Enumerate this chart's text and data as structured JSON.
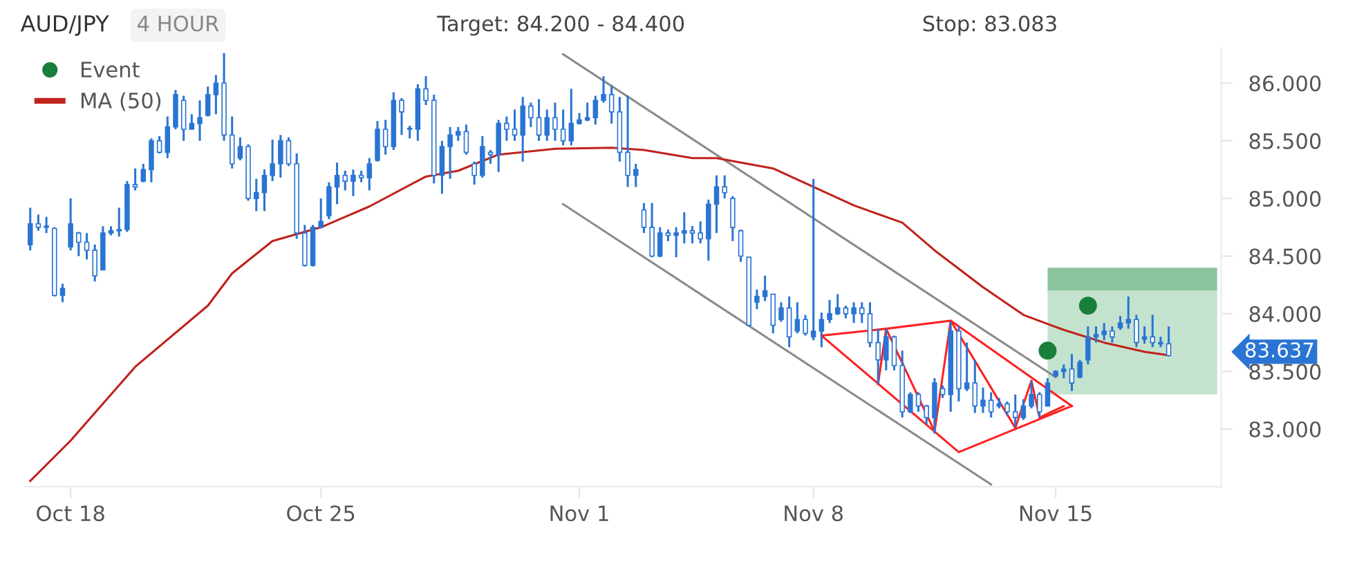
{
  "chart_data": {
    "type": "candlestick",
    "title": "AUD/JPY",
    "subtitle": "4 HOUR",
    "categories": [
      null,
      null,
      null,
      null,
      null,
      "Oct 18",
      null,
      null,
      null,
      null,
      null,
      null,
      null,
      null,
      null,
      null,
      null,
      null,
      null,
      null,
      null,
      null,
      null,
      null,
      null,
      null,
      null,
      null,
      null,
      null,
      null,
      null,
      null,
      null,
      null,
      null,
      "Oct 25",
      null,
      null,
      null,
      null,
      null,
      null,
      null,
      null,
      null,
      null,
      null,
      null,
      null,
      null,
      null,
      null,
      null,
      null,
      null,
      null,
      null,
      null,
      null,
      null,
      null,
      null,
      null,
      null,
      null,
      null,
      null,
      "Nov 1",
      null,
      null,
      null,
      null,
      null,
      null,
      null,
      null,
      null,
      null,
      null,
      null,
      null,
      null,
      null,
      null,
      null,
      null,
      null,
      null,
      null,
      null,
      null,
      null,
      null,
      null,
      null,
      null,
      "Nov 8",
      null,
      null,
      null,
      null,
      null,
      null,
      null,
      null,
      null,
      null,
      null,
      null,
      null,
      null,
      null,
      null,
      null,
      null,
      null,
      null,
      null,
      null,
      null,
      null,
      null,
      null,
      null,
      null,
      null,
      "Nov 15",
      null,
      null,
      null,
      null,
      null,
      null,
      null,
      null,
      null,
      null,
      null,
      null,
      null,
      null,
      null,
      null,
      null,
      null,
      null,
      null
    ],
    "ylim": [
      82.5,
      86.3
    ],
    "yticks": [
      {
        "value": 83,
        "label": "83.000"
      },
      {
        "value": 83.5,
        "label": "83.500"
      },
      {
        "value": 84,
        "label": "84.000"
      },
      {
        "value": 84.5,
        "label": "84.500"
      },
      {
        "value": 85,
        "label": "85.000"
      },
      {
        "value": 85.5,
        "label": "85.500"
      },
      {
        "value": 86,
        "label": "86.000"
      }
    ],
    "grid": false,
    "legend": "top left",
    "bands": [
      {
        "axis": "y",
        "from": 83.3,
        "to": 84.2,
        "color": "#c3e3cf"
      },
      {
        "axis": "y",
        "from": 84.2,
        "to": 84.4,
        "color": "#8cc49d"
      }
    ],
    "annotations": [
      "Target: 84.200 - 84.400",
      "Stop: 83.083",
      "83.637"
    ],
    "series": [
      {
        "type": "line",
        "color": "#8a8a8a",
        "values": [
          null,
          null,
          null,
          null,
          null,
          null,
          null,
          null,
          null,
          null,
          null,
          null,
          null,
          null,
          null,
          null,
          null,
          null,
          null,
          null,
          null,
          null,
          null,
          null,
          null,
          null,
          null,
          null,
          null,
          null,
          null,
          null,
          null,
          null,
          null,
          null,
          null,
          null,
          null,
          null,
          null,
          null,
          null,
          null,
          null,
          null,
          null,
          null,
          null,
          null,
          null,
          null,
          null,
          null,
          null,
          null,
          null,
          null,
          null,
          null,
          null,
          null,
          null,
          null,
          null,
          null,
          86.25,
          null,
          null,
          null,
          null,
          null,
          null,
          null,
          null,
          null,
          null,
          null,
          null,
          null,
          null,
          null,
          null,
          null,
          null,
          null,
          null,
          null,
          null,
          null,
          null,
          null,
          null,
          null,
          null,
          null,
          null,
          null,
          null,
          null,
          null,
          null,
          null,
          null,
          null,
          null,
          null,
          null,
          null,
          null,
          null,
          null,
          null,
          null,
          null,
          null,
          null,
          null,
          null,
          null,
          null,
          null,
          null,
          null,
          null,
          null,
          null,
          83.45,
          null,
          null,
          null,
          null,
          null,
          null,
          null,
          null,
          null,
          null,
          null,
          null,
          null,
          null,
          null,
          null,
          null,
          null,
          null,
          null
        ]
      },
      {
        "type": "line",
        "color": "#8a8a8a",
        "values": [
          null,
          null,
          null,
          null,
          null,
          null,
          null,
          null,
          null,
          null,
          null,
          null,
          null,
          null,
          null,
          null,
          null,
          null,
          null,
          null,
          null,
          null,
          null,
          null,
          null,
          null,
          null,
          null,
          null,
          null,
          null,
          null,
          null,
          null,
          null,
          null,
          null,
          null,
          null,
          null,
          null,
          null,
          null,
          null,
          null,
          null,
          null,
          null,
          null,
          null,
          null,
          null,
          null,
          null,
          null,
          null,
          null,
          null,
          null,
          null,
          null,
          null,
          null,
          null,
          null,
          null,
          84.95,
          null,
          null,
          null,
          null,
          null,
          null,
          null,
          null,
          null,
          null,
          null,
          null,
          null,
          null,
          null,
          null,
          null,
          null,
          null,
          null,
          null,
          null,
          null,
          null,
          null,
          null,
          null,
          null,
          null,
          null,
          null,
          null,
          null,
          null,
          null,
          null,
          null,
          null,
          null,
          null,
          null,
          null,
          null,
          null,
          null,
          null,
          null,
          null,
          null,
          null,
          null,
          null,
          82.52,
          null,
          null,
          null,
          null,
          null,
          null,
          null,
          null,
          null,
          null,
          null,
          null,
          null,
          null,
          null,
          null,
          null,
          null,
          null,
          null,
          null,
          null,
          null,
          null,
          null,
          null,
          null,
          null
        ]
      },
      {
        "type": "line",
        "name": "MA (50)",
        "color": "#c0221b",
        "values": [
          82.55,
          null,
          null,
          null,
          null,
          82.9,
          null,
          null,
          null,
          null,
          null,
          null,
          null,
          83.54,
          null,
          null,
          null,
          null,
          null,
          null,
          null,
          null,
          84.07,
          null,
          null,
          84.35,
          null,
          null,
          null,
          null,
          84.63,
          null,
          null,
          null,
          null,
          null,
          84.75,
          null,
          null,
          null,
          null,
          null,
          84.93,
          null,
          null,
          null,
          null,
          null,
          null,
          85.19,
          null,
          null,
          null,
          85.24,
          null,
          null,
          null,
          null,
          85.38,
          null,
          null,
          null,
          null,
          null,
          null,
          85.43,
          null,
          null,
          null,
          null,
          null,
          null,
          85.44,
          null,
          null,
          null,
          85.42,
          null,
          null,
          null,
          null,
          null,
          85.35,
          null,
          null,
          85.35,
          null,
          null,
          null,
          null,
          null,
          null,
          85.26,
          null,
          null,
          null,
          null,
          85.1,
          null,
          null,
          null,
          null,
          84.94,
          null,
          null,
          null,
          null,
          null,
          84.79,
          null,
          null,
          null,
          84.55,
          null,
          null,
          null,
          null,
          null,
          84.23,
          null,
          null,
          null,
          null,
          83.99,
          null,
          null,
          null,
          null,
          83.86,
          null,
          null,
          null,
          null,
          83.75,
          null,
          null,
          null,
          null,
          83.67,
          null,
          null,
          83.64,
          null,
          null,
          null,
          null,
          null,
          null
        ]
      },
      {
        "color": "#2a75d3",
        "ohlc": [
          [
            84.6,
            84.92,
            84.55,
            84.78
          ],
          [
            84.78,
            84.86,
            84.72,
            84.75
          ],
          [
            84.75,
            84.84,
            84.7,
            84.76
          ],
          [
            84.74,
            84.75,
            84.15,
            84.16
          ],
          [
            84.16,
            84.26,
            84.1,
            84.22
          ],
          [
            84.58,
            85.0,
            84.55,
            84.78
          ],
          [
            84.7,
            84.71,
            84.5,
            84.62
          ],
          [
            84.62,
            84.7,
            84.47,
            84.55
          ],
          [
            84.55,
            84.6,
            84.28,
            84.33
          ],
          [
            84.38,
            84.76,
            84.38,
            84.7
          ],
          [
            84.7,
            84.76,
            84.68,
            84.72
          ],
          [
            84.72,
            84.92,
            84.67,
            84.73
          ],
          [
            84.73,
            85.15,
            84.71,
            85.12
          ],
          [
            85.12,
            85.26,
            85.07,
            85.1
          ],
          [
            85.15,
            85.3,
            85.14,
            85.25
          ],
          [
            85.25,
            85.52,
            85.14,
            85.5
          ],
          [
            85.5,
            85.54,
            85.39,
            85.4
          ],
          [
            85.4,
            85.71,
            85.35,
            85.62
          ],
          [
            85.62,
            85.94,
            85.6,
            85.9
          ],
          [
            85.85,
            85.89,
            85.5,
            85.6
          ],
          [
            85.6,
            85.73,
            85.6,
            85.65
          ],
          [
            85.65,
            85.85,
            85.5,
            85.7
          ],
          [
            85.72,
            85.97,
            85.71,
            85.9
          ],
          [
            85.9,
            86.07,
            85.73,
            86.0
          ],
          [
            86.0,
            86.26,
            85.5,
            85.55
          ],
          [
            85.55,
            85.71,
            85.26,
            85.3
          ],
          [
            85.35,
            85.53,
            85.33,
            85.45
          ],
          [
            85.45,
            85.47,
            84.98,
            85.0
          ],
          [
            85.0,
            85.17,
            84.89,
            85.05
          ],
          [
            85.05,
            85.25,
            84.89,
            85.2
          ],
          [
            85.2,
            85.51,
            85.15,
            85.3
          ],
          [
            85.3,
            85.55,
            85.18,
            85.5
          ],
          [
            85.5,
            85.53,
            85.28,
            85.3
          ],
          [
            85.3,
            85.39,
            84.65,
            84.7
          ],
          [
            84.7,
            84.77,
            84.41,
            84.42
          ],
          [
            84.42,
            84.77,
            84.41,
            84.75
          ],
          [
            84.75,
            85.0,
            84.74,
            84.8
          ],
          [
            84.85,
            85.14,
            84.82,
            85.1
          ],
          [
            85.1,
            85.31,
            84.95,
            85.2
          ],
          [
            85.2,
            85.24,
            85.07,
            85.15
          ],
          [
            85.15,
            85.25,
            85.02,
            85.2
          ],
          [
            85.2,
            85.24,
            85.14,
            85.18
          ],
          [
            85.18,
            85.35,
            85.07,
            85.3
          ],
          [
            85.33,
            85.67,
            85.32,
            85.6
          ],
          [
            85.6,
            85.68,
            85.38,
            85.45
          ],
          [
            85.45,
            85.92,
            85.42,
            85.85
          ],
          [
            85.85,
            85.87,
            85.55,
            85.75
          ],
          [
            85.6,
            85.63,
            85.52,
            85.6
          ],
          [
            85.6,
            85.99,
            85.5,
            85.95
          ],
          [
            85.95,
            86.06,
            85.81,
            85.85
          ],
          [
            85.85,
            85.9,
            85.13,
            85.2
          ],
          [
            85.2,
            85.5,
            85.04,
            85.45
          ],
          [
            85.45,
            85.62,
            85.17,
            85.55
          ],
          [
            85.55,
            85.62,
            85.5,
            85.58
          ],
          [
            85.58,
            85.64,
            85.38,
            85.4
          ],
          [
            85.3,
            85.32,
            85.12,
            85.2
          ],
          [
            85.2,
            85.54,
            85.18,
            85.45
          ],
          [
            85.4,
            85.42,
            85.3,
            85.38
          ],
          [
            85.38,
            85.68,
            85.23,
            85.65
          ],
          [
            85.65,
            85.71,
            85.5,
            85.6
          ],
          [
            85.6,
            85.77,
            85.5,
            85.55
          ],
          [
            85.55,
            85.88,
            85.32,
            85.8
          ],
          [
            85.8,
            85.83,
            85.62,
            85.7
          ],
          [
            85.7,
            85.86,
            85.5,
            85.55
          ],
          [
            85.55,
            85.77,
            85.5,
            85.7
          ],
          [
            85.7,
            85.83,
            85.5,
            85.6
          ],
          [
            85.6,
            85.77,
            85.46,
            85.5
          ],
          [
            85.5,
            85.95,
            85.46,
            85.65
          ],
          [
            85.65,
            85.74,
            85.64,
            85.68
          ],
          [
            85.68,
            85.83,
            85.67,
            85.7
          ],
          [
            85.7,
            85.89,
            85.64,
            85.85
          ],
          [
            85.85,
            86.06,
            85.83,
            85.9
          ],
          [
            85.9,
            85.98,
            85.65,
            85.75
          ],
          [
            85.75,
            85.88,
            85.32,
            85.4
          ],
          [
            85.4,
            85.89,
            85.1,
            85.2
          ],
          [
            85.2,
            85.3,
            85.1,
            85.25
          ],
          [
            84.9,
            84.96,
            84.7,
            84.75
          ],
          [
            84.75,
            84.96,
            84.49,
            84.5
          ],
          [
            84.5,
            84.75,
            84.49,
            84.7
          ],
          [
            84.7,
            84.73,
            84.63,
            84.68
          ],
          [
            84.68,
            84.75,
            84.49,
            84.7
          ],
          [
            84.7,
            84.88,
            84.61,
            84.72
          ],
          [
            84.72,
            84.76,
            84.61,
            84.7
          ],
          [
            84.7,
            84.8,
            84.61,
            84.65
          ],
          [
            84.65,
            84.99,
            84.46,
            84.95
          ],
          [
            84.95,
            85.2,
            84.7,
            85.1
          ],
          [
            85.1,
            85.2,
            85.0,
            85.05
          ],
          [
            85.0,
            85.02,
            84.63,
            84.75
          ],
          [
            84.72,
            84.73,
            84.45,
            84.5
          ],
          [
            84.49,
            84.49,
            83.89,
            83.9
          ],
          [
            84.1,
            84.21,
            84.04,
            84.15
          ],
          [
            84.15,
            84.33,
            84.11,
            84.2
          ],
          [
            84.17,
            84.17,
            83.83,
            83.9
          ],
          [
            83.95,
            84.1,
            83.93,
            84.05
          ],
          [
            84.05,
            84.15,
            83.71,
            83.8
          ],
          [
            83.85,
            84.1,
            83.83,
            83.95
          ],
          [
            83.95,
            83.99,
            83.81,
            83.83
          ],
          [
            83.8,
            85.17,
            83.77,
            83.85
          ],
          [
            83.85,
            84.01,
            83.71,
            83.95
          ],
          [
            83.95,
            84.12,
            83.92,
            84.0
          ],
          [
            84.0,
            84.17,
            83.99,
            84.05
          ],
          [
            84.05,
            84.07,
            83.96,
            84.0
          ],
          [
            84.0,
            84.1,
            83.92,
            84.05
          ],
          [
            84.05,
            84.1,
            83.92,
            84.0
          ],
          [
            84.0,
            84.1,
            83.71,
            83.75
          ],
          [
            83.75,
            83.87,
            83.39,
            83.6
          ],
          [
            83.6,
            83.87,
            83.51,
            83.8
          ],
          [
            83.8,
            83.81,
            83.51,
            83.55
          ],
          [
            83.55,
            83.68,
            83.1,
            83.15
          ],
          [
            83.15,
            83.32,
            83.14,
            83.3
          ],
          [
            83.3,
            83.32,
            83.15,
            83.2
          ],
          [
            83.2,
            83.21,
            83.04,
            83.1
          ],
          [
            83.1,
            83.44,
            82.96,
            83.4
          ],
          [
            83.35,
            83.38,
            83.27,
            83.3
          ],
          [
            83.3,
            83.93,
            83.15,
            83.85
          ],
          [
            83.85,
            83.89,
            83.24,
            83.35
          ],
          [
            83.35,
            83.75,
            83.33,
            83.4
          ],
          [
            83.4,
            83.6,
            83.14,
            83.2
          ],
          [
            83.2,
            83.36,
            83.14,
            83.25
          ],
          [
            83.25,
            83.32,
            83.1,
            83.15
          ],
          [
            83.2,
            83.27,
            83.18,
            83.22
          ],
          [
            83.22,
            83.24,
            83.12,
            83.15
          ],
          [
            83.15,
            83.3,
            83.02,
            83.1
          ],
          [
            83.1,
            83.26,
            83.08,
            83.2
          ],
          [
            83.2,
            83.42,
            83.18,
            83.3
          ],
          [
            83.3,
            83.32,
            83.1,
            83.15
          ],
          [
            83.2,
            83.44,
            83.2,
            83.4
          ],
          [
            83.46,
            83.51,
            83.45,
            83.5
          ],
          [
            83.5,
            83.56,
            83.44,
            83.52
          ],
          [
            83.52,
            83.65,
            83.33,
            83.4
          ],
          [
            83.45,
            83.6,
            83.44,
            83.58
          ],
          [
            83.6,
            83.89,
            83.56,
            83.8
          ],
          [
            83.8,
            83.89,
            83.75,
            83.82
          ],
          [
            83.82,
            83.92,
            83.77,
            83.85
          ],
          [
            83.85,
            83.89,
            83.75,
            83.8
          ],
          [
            83.88,
            83.98,
            83.86,
            83.92
          ],
          [
            83.92,
            84.15,
            83.87,
            83.95
          ],
          [
            83.95,
            83.99,
            83.71,
            83.75
          ],
          [
            83.78,
            83.89,
            83.74,
            83.8
          ],
          [
            83.8,
            83.99,
            83.71,
            83.75
          ],
          [
            83.75,
            83.8,
            83.71,
            83.74
          ],
          [
            83.74,
            83.89,
            83.63,
            83.637
          ],
          null,
          null,
          null,
          null,
          null,
          null
        ]
      },
      {
        "type": "line",
        "color": "#ff2020",
        "values": [
          null,
          null,
          null,
          null,
          null,
          null,
          null,
          null,
          null,
          null,
          null,
          null,
          null,
          null,
          null,
          null,
          null,
          null,
          null,
          null,
          null,
          null,
          null,
          null,
          null,
          null,
          null,
          null,
          null,
          null,
          null,
          null,
          null,
          null,
          null,
          null,
          null,
          null,
          null,
          null,
          null,
          null,
          null,
          null,
          null,
          null,
          null,
          null,
          null,
          null,
          null,
          null,
          null,
          null,
          null,
          null,
          null,
          null,
          null,
          null,
          null,
          null,
          null,
          null,
          null,
          null,
          null,
          null,
          null,
          null,
          null,
          null,
          null,
          null,
          null,
          null,
          null,
          null,
          null,
          null,
          null,
          null,
          null,
          null,
          null,
          null,
          null,
          null,
          null,
          null,
          null,
          null,
          null,
          null,
          null,
          null,
          null,
          null,
          83.81,
          null,
          null,
          null,
          null,
          null,
          null,
          null,
          83.87,
          null,
          null,
          null,
          null,
          null,
          null,
          null,
          83.94,
          null,
          null,
          null,
          null,
          null,
          null,
          null,
          null,
          null,
          null,
          null,
          null,
          null,
          null,
          83.2,
          null,
          null,
          null,
          null,
          null,
          null,
          null,
          null,
          null,
          null,
          null,
          null,
          null,
          null,
          null,
          null,
          null,
          null
        ]
      },
      {
        "type": "line",
        "color": "#ff2020",
        "values": [
          null,
          null,
          null,
          null,
          null,
          null,
          null,
          null,
          null,
          null,
          null,
          null,
          null,
          null,
          null,
          null,
          null,
          null,
          null,
          null,
          null,
          null,
          null,
          null,
          null,
          null,
          null,
          null,
          null,
          null,
          null,
          null,
          null,
          null,
          null,
          null,
          null,
          null,
          null,
          null,
          null,
          null,
          null,
          null,
          null,
          null,
          null,
          null,
          null,
          null,
          null,
          null,
          null,
          null,
          null,
          null,
          null,
          null,
          null,
          null,
          null,
          null,
          null,
          null,
          null,
          null,
          null,
          null,
          null,
          null,
          null,
          null,
          null,
          null,
          null,
          null,
          null,
          null,
          null,
          null,
          null,
          null,
          null,
          null,
          null,
          null,
          null,
          null,
          null,
          null,
          null,
          null,
          null,
          null,
          null,
          null,
          null,
          null,
          83.81,
          null,
          null,
          null,
          null,
          null,
          null,
          null,
          null,
          null,
          null,
          null,
          null,
          null,
          null,
          null,
          null,
          82.8,
          null,
          null,
          null,
          null,
          null,
          null,
          null,
          null,
          null,
          null,
          null,
          null,
          null,
          83.2,
          null,
          null,
          null,
          null,
          null,
          null,
          null,
          null,
          null,
          null,
          null,
          null,
          null,
          null,
          null,
          null,
          null,
          null
        ]
      },
      {
        "type": "line",
        "color": "#ff2020",
        "values": [
          null,
          null,
          null,
          null,
          null,
          null,
          null,
          null,
          null,
          null,
          null,
          null,
          null,
          null,
          null,
          null,
          null,
          null,
          null,
          null,
          null,
          null,
          null,
          null,
          null,
          null,
          null,
          null,
          null,
          null,
          null,
          null,
          null,
          null,
          null,
          null,
          null,
          null,
          null,
          null,
          null,
          null,
          null,
          null,
          null,
          null,
          null,
          null,
          null,
          null,
          null,
          null,
          null,
          null,
          null,
          null,
          null,
          null,
          null,
          null,
          null,
          null,
          null,
          null,
          null,
          null,
          null,
          null,
          null,
          null,
          null,
          null,
          null,
          null,
          null,
          null,
          null,
          null,
          null,
          null,
          null,
          null,
          null,
          null,
          null,
          null,
          null,
          null,
          null,
          null,
          null,
          null,
          null,
          null,
          null,
          null,
          null,
          null,
          null,
          null,
          null,
          null,
          null,
          null,
          null,
          83.39,
          83.87,
          null,
          null,
          null,
          null,
          null,
          82.98,
          null,
          83.94,
          null,
          null,
          null,
          null,
          null,
          null,
          null,
          83.01,
          null,
          83.42,
          83.1,
          null,
          null,
          83.2,
          null,
          null,
          null,
          null,
          null,
          null,
          null,
          null,
          null,
          null,
          null,
          null,
          null,
          null,
          null,
          null,
          null,
          null,
          null
        ]
      },
      {
        "type": "scatter",
        "name": "Event",
        "color": "#1a7f3c",
        "marker": "circle",
        "values": [
          null,
          null,
          null,
          null,
          null,
          null,
          null,
          null,
          null,
          null,
          null,
          null,
          null,
          null,
          null,
          null,
          null,
          null,
          null,
          null,
          null,
          null,
          null,
          null,
          null,
          null,
          null,
          null,
          null,
          null,
          null,
          null,
          null,
          null,
          null,
          null,
          null,
          null,
          null,
          null,
          null,
          null,
          null,
          null,
          null,
          null,
          null,
          null,
          null,
          null,
          null,
          null,
          null,
          null,
          null,
          null,
          null,
          null,
          null,
          null,
          null,
          null,
          null,
          null,
          null,
          null,
          null,
          null,
          null,
          null,
          null,
          null,
          null,
          null,
          null,
          null,
          null,
          null,
          null,
          null,
          null,
          null,
          null,
          null,
          null,
          null,
          null,
          null,
          null,
          null,
          null,
          null,
          null,
          null,
          null,
          null,
          null,
          null,
          null,
          null,
          null,
          null,
          null,
          null,
          null,
          null,
          null,
          null,
          null,
          null,
          null,
          null,
          null,
          null,
          null,
          null,
          null,
          null,
          null,
          null,
          null,
          null,
          null,
          null,
          null,
          null,
          83.68,
          null,
          null,
          null,
          null,
          84.07,
          null,
          null,
          null,
          null,
          null,
          null,
          null,
          null,
          null,
          null,
          null,
          null,
          null,
          null,
          null,
          null
        ]
      }
    ]
  }
}
